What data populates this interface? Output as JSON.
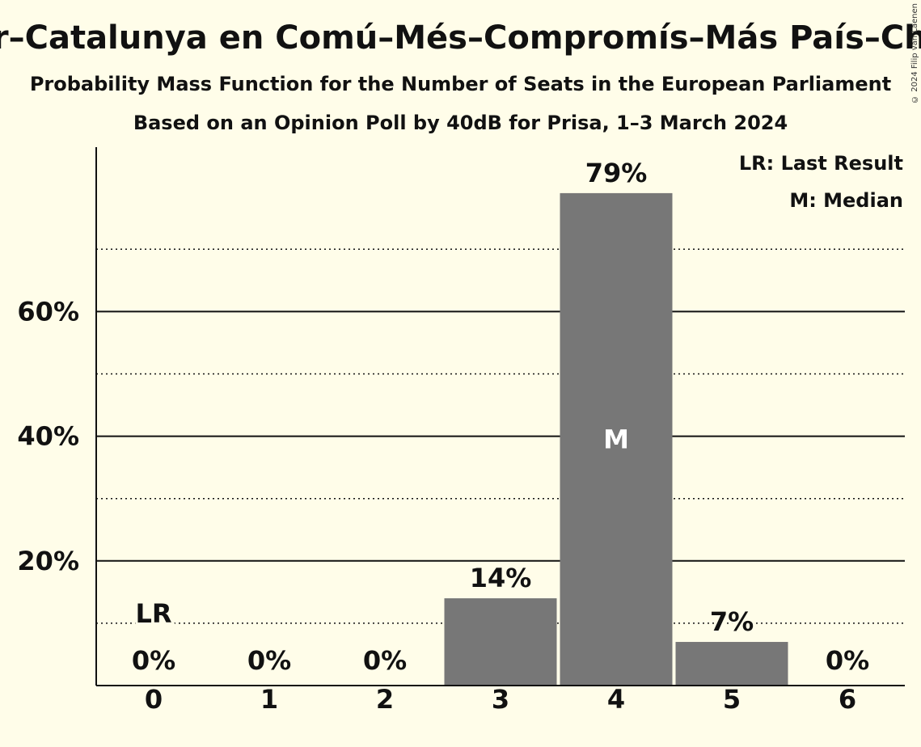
{
  "title": "ar–Catalunya en Comú–Més–Compromís–Más País–Chu",
  "subtitle": "Probability Mass Function for the Number of Seats in the European Parliament",
  "subtitle2": "Based on an Opinion Poll by 40dB for Prisa, 1–3 March 2024",
  "copyright": "© 2024 Filip van Laenen",
  "colors": {
    "bar": "#777777",
    "background": "#fffde9",
    "text": "#111111"
  },
  "chart_data": {
    "type": "bar",
    "categories": [
      "0",
      "1",
      "2",
      "3",
      "4",
      "5",
      "6"
    ],
    "values": [
      0,
      0,
      0,
      14,
      79,
      7,
      0
    ],
    "value_labels": [
      "0%",
      "0%",
      "0%",
      "14%",
      "79%",
      "7%",
      "0%"
    ],
    "ylim": [
      0,
      86
    ],
    "yticks": [
      20,
      40,
      60
    ],
    "ytick_labels": [
      "20%",
      "40%",
      "60%"
    ],
    "minor_gridlines": [
      10,
      30,
      50,
      70
    ],
    "last_result_index": 0,
    "last_result_marker": "LR",
    "median_index": 4,
    "median_marker": "M",
    "legend": [
      "LR: Last Result",
      "M: Median"
    ],
    "legend_position": "top-right"
  }
}
